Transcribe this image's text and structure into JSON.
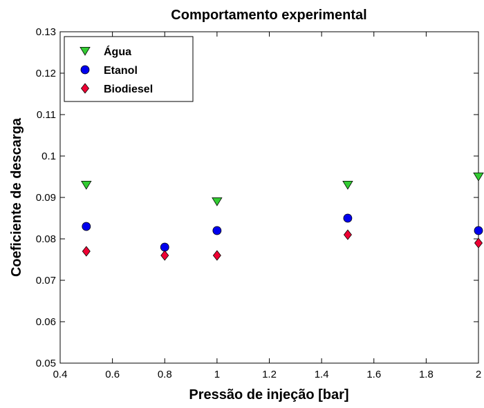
{
  "chart_data": {
    "type": "scatter",
    "title": "Comportamento experimental",
    "xlabel": "Pressão de injeção [bar]",
    "ylabel": "Coeficiente de descarga",
    "xlim": [
      0.4,
      2.0
    ],
    "ylim": [
      0.05,
      0.13
    ],
    "xticks": [
      0.4,
      0.6,
      0.8,
      1.0,
      1.2,
      1.4,
      1.6,
      1.8,
      2.0
    ],
    "xtick_labels": [
      "0.4",
      "0.6",
      "0.8",
      "1",
      "1.2",
      "1.4",
      "1.6",
      "1.8",
      "2"
    ],
    "yticks": [
      0.05,
      0.06,
      0.07,
      0.08,
      0.09,
      0.1,
      0.11,
      0.12,
      0.13
    ],
    "ytick_labels": [
      "0.05",
      "0.06",
      "0.07",
      "0.08",
      "0.09",
      "0.1",
      "0.11",
      "0.12",
      "0.13"
    ],
    "grid": false,
    "legend_position": "top-left",
    "series": [
      {
        "name": "Água",
        "marker": "triangle-down",
        "color": "#33cc33",
        "x": [
          0.5,
          1.0,
          1.5,
          2.0
        ],
        "y": [
          0.093,
          0.089,
          0.093,
          0.095
        ]
      },
      {
        "name": "Etanol",
        "marker": "circle",
        "color": "#0000ee",
        "x": [
          0.5,
          0.8,
          1.0,
          1.5,
          2.0
        ],
        "y": [
          0.083,
          0.078,
          0.082,
          0.085,
          0.082
        ]
      },
      {
        "name": "Biodiesel",
        "marker": "diamond",
        "color": "#ee0033",
        "x": [
          0.5,
          0.8,
          1.0,
          1.5,
          2.0
        ],
        "y": [
          0.077,
          0.076,
          0.076,
          0.081,
          0.079
        ]
      }
    ]
  }
}
